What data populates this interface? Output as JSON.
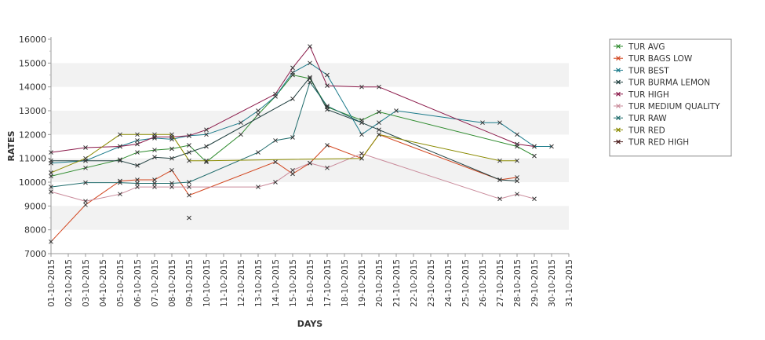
{
  "chart_data": {
    "type": "line",
    "xlabel": "DAYS",
    "ylabel": "RATES",
    "ylim": [
      7000,
      16000
    ],
    "yticks": [
      7000,
      8000,
      9000,
      10000,
      11000,
      12000,
      13000,
      14000,
      15000,
      16000
    ],
    "xlim": [
      1,
      31
    ],
    "x_tick_labels": [
      "01-10-2015",
      "02-10-2015",
      "03-10-2015",
      "04-10-2015",
      "05-10-2015",
      "06-10-2015",
      "07-10-2015",
      "08-10-2015",
      "09-10-2015",
      "10-10-2015",
      "11-10-2015",
      "12-10-2015",
      "13-10-2015",
      "14-10-2015",
      "15-10-2015",
      "16-10-2015",
      "17-10-2015",
      "18-10-2015",
      "19-10-2015",
      "20-10-2015",
      "21-10-2015",
      "22-10-2015",
      "23-10-2015",
      "24-10-2015",
      "25-10-2015",
      "26-10-2015",
      "27-10-2015",
      "28-10-2015",
      "29-10-2015",
      "30-10-2015",
      "31-10-2015"
    ],
    "grid": "alternating horizontal bands",
    "legend_position": "right",
    "series": [
      {
        "name": "TUR AVG",
        "color": "#2e8b2e",
        "days": [
          1,
          3,
          5,
          6,
          7,
          8,
          9,
          10,
          12,
          13,
          14,
          15,
          16,
          17,
          19,
          20,
          28,
          29
        ],
        "values": [
          10250,
          10600,
          10950,
          11250,
          11350,
          11400,
          11550,
          10850,
          12000,
          12850,
          13600,
          14500,
          14350,
          13150,
          12600,
          12950,
          11500,
          11100
        ]
      },
      {
        "name": "TUR BAGS LOW",
        "color": "#d2451e",
        "days": [
          1,
          3,
          5,
          6,
          7,
          8,
          9,
          14,
          15,
          16,
          17,
          19,
          20,
          27,
          28
        ],
        "values": [
          7500,
          9050,
          10050,
          10100,
          10100,
          10500,
          9450,
          10850,
          10350,
          10800,
          11550,
          11000,
          12000,
          10100,
          10200
        ]
      },
      {
        "name": "TUR BEST",
        "color": "#1a7a8a",
        "days": [
          1,
          3,
          5,
          6,
          7,
          8,
          9,
          10,
          12,
          13,
          14,
          15,
          16,
          17,
          19,
          20,
          21,
          26,
          27,
          28,
          29,
          30
        ],
        "values": [
          10800,
          10900,
          11500,
          11750,
          11850,
          11800,
          11950,
          12000,
          12500,
          13000,
          13600,
          14600,
          15000,
          14500,
          12000,
          12500,
          13000,
          12500,
          12500,
          12000,
          11500,
          11500
        ]
      },
      {
        "name": "TUR BURMA LEMON",
        "color": "#1f3f3f",
        "days": [
          1,
          3,
          5,
          6,
          7,
          8,
          9,
          10,
          15,
          16,
          17,
          19,
          20,
          27,
          28
        ],
        "values": [
          10900,
          10900,
          10900,
          10700,
          11050,
          11000,
          11250,
          11500,
          13500,
          14400,
          13050,
          12500,
          12200,
          10100,
          10050
        ]
      },
      {
        "name": "TUR HIGH",
        "color": "#8b1a4a",
        "days": [
          1,
          3,
          5,
          6,
          7,
          8,
          9,
          10,
          14,
          15,
          16,
          17,
          19,
          20,
          28,
          29
        ],
        "values": [
          11250,
          11450,
          11500,
          11600,
          11900,
          11900,
          11950,
          12200,
          13700,
          14800,
          15700,
          14050,
          14000,
          14000,
          11600,
          11500
        ]
      },
      {
        "name": "TUR MEDIUM QUALITY",
        "color": "#c98a9a",
        "days": [
          1,
          3,
          5,
          6,
          7,
          8,
          9,
          13,
          14,
          15,
          16,
          17,
          19,
          27,
          28,
          29
        ],
        "values": [
          9600,
          9200,
          9500,
          9800,
          9800,
          9800,
          9800,
          9800,
          10000,
          10500,
          10800,
          10600,
          11200,
          9300,
          9500,
          9300
        ]
      },
      {
        "name": "TUR RAW",
        "color": "#1f6b6b",
        "days": [
          1,
          3,
          5,
          6,
          7,
          8,
          9,
          13,
          14,
          15,
          16,
          17,
          19
        ],
        "values": [
          9800,
          9980,
          9980,
          9950,
          9950,
          9950,
          10000,
          11250,
          11750,
          11880,
          14200,
          13200,
          12500
        ]
      },
      {
        "name": "TUR RED",
        "color": "#8a8a00",
        "days": [
          1,
          3,
          5,
          6,
          7,
          8,
          9,
          10,
          19,
          20,
          27,
          28
        ],
        "values": [
          10400,
          11000,
          12000,
          12000,
          12000,
          12000,
          10900,
          10900,
          11000,
          12000,
          10900,
          10900
        ]
      },
      {
        "name": "TUR RED HIGH",
        "color": "#4a1a1a",
        "days": [
          9
        ],
        "values": [
          8500
        ]
      }
    ]
  }
}
